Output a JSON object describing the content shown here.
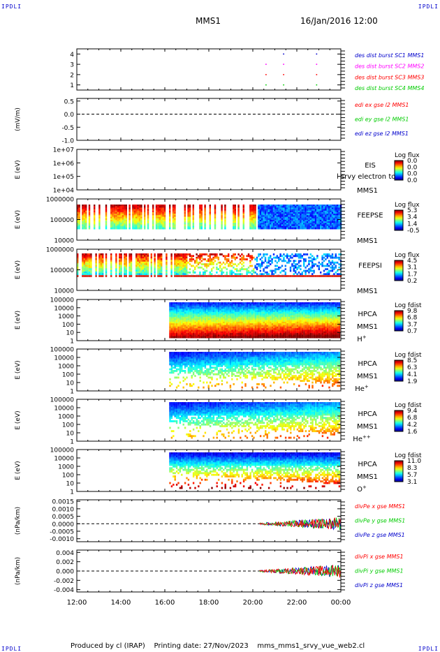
{
  "corner_tag": "IPDLI",
  "header": {
    "spacecraft": "MMS1",
    "datetime": "16/Jan/2016 12:00"
  },
  "footer": {
    "produced_by": "Produced by cl (IRAP)",
    "printing_date": "Printing date: 27/Nov/2023",
    "filename": "mms_mms1_srvy_vue_web2.cl"
  },
  "colors": {
    "red": "#ff0000",
    "green": "#00cc00",
    "blue": "#0000cc",
    "magenta": "#ff00ff"
  },
  "chart_data": [
    {
      "type": "scatter",
      "panel": "dist-burst",
      "yticks": [
        "1",
        "2",
        "3",
        "4"
      ],
      "ylim": [
        0.5,
        4.5
      ],
      "legend": [
        {
          "label": "des dist burst SC1 MMS1",
          "color": "#0000cc"
        },
        {
          "label": "des dist burst SC2 MMS2",
          "color": "#ff00ff"
        },
        {
          "label": "des dist burst SC3 MMS3",
          "color": "#ff0000"
        },
        {
          "label": "des dist burst SC4 MMS4",
          "color": "#00cc00"
        }
      ],
      "points": [
        {
          "x": 20.6,
          "y": 1
        },
        {
          "x": 21.4,
          "y": 1
        },
        {
          "x": 22.9,
          "y": 1
        },
        {
          "x": 20.6,
          "y": 2
        },
        {
          "x": 21.4,
          "y": 2
        },
        {
          "x": 22.9,
          "y": 2
        },
        {
          "x": 20.6,
          "y": 3
        },
        {
          "x": 21.4,
          "y": 3
        },
        {
          "x": 22.9,
          "y": 3
        },
        {
          "x": 21.4,
          "y": 4
        },
        {
          "x": 22.9,
          "y": 4
        }
      ]
    },
    {
      "type": "line",
      "panel": "edi",
      "ylabel": "(mV/m)",
      "yticks": [
        "0.5",
        "0.0",
        "-0.5",
        "-1.0"
      ],
      "ylim": [
        -1.0,
        0.6
      ],
      "legend": [
        {
          "label": "edi ex gse l2 MMS1",
          "color": "#ff0000"
        },
        {
          "label": "edi ey gse l2 MMS1",
          "color": "#00cc00"
        },
        {
          "label": "edi ez gse l2 MMS1",
          "color": "#0000cc"
        }
      ]
    },
    {
      "type": "heatmap",
      "panel": "eis",
      "ylabel": "E (eV)",
      "yticks": [
        "1e+07",
        "1e+06",
        "1e+05",
        "1e+04"
      ],
      "ylim": [
        10000,
        10000000
      ],
      "log_scale": true,
      "instrument": [
        "EIS",
        "MMS1"
      ],
      "overlay_text": "l srvy electron to",
      "colorbar_title": "Log flux",
      "colorbar_ticks": [
        "0.0",
        "0.0",
        "0.0",
        "0.0"
      ]
    },
    {
      "type": "heatmap",
      "panel": "feeps-e",
      "ylabel": "E (eV)",
      "yticks": [
        "1000000",
        "100000",
        "10000"
      ],
      "ylim": [
        10000,
        1000000
      ],
      "log_scale": true,
      "instrument": [
        "FEEPSE",
        "MMS1"
      ],
      "colorbar_title": "Log flux",
      "colorbar_ticks": [
        "5.3",
        "3.4",
        "1.4",
        "-0.5"
      ],
      "data_start_hour": 12.0
    },
    {
      "type": "heatmap",
      "panel": "feeps-i",
      "ylabel": "E (eV)",
      "yticks": [
        "1000000",
        "100000",
        "10000"
      ],
      "ylim": [
        10000,
        1000000
      ],
      "log_scale": true,
      "instrument": [
        "FEEPSI",
        "MMS1"
      ],
      "colorbar_title": "Log flux",
      "colorbar_ticks": [
        "4.5",
        "3.1",
        "1.7",
        "0.2"
      ],
      "data_start_hour": 12.0
    },
    {
      "type": "heatmap",
      "panel": "hpca-h",
      "ylabel": "E (eV)",
      "yticks": [
        "100000",
        "10000",
        "1000",
        "100",
        "10",
        "1"
      ],
      "ylim": [
        1,
        100000
      ],
      "log_scale": true,
      "instrument": [
        "HPCA",
        "MMS1",
        "H+"
      ],
      "colorbar_title": "Log fdist",
      "colorbar_ticks": [
        "9.8",
        "6.8",
        "3.7",
        "0.7"
      ],
      "data_start_hour": 16.2
    },
    {
      "type": "heatmap",
      "panel": "hpca-he",
      "ylabel": "E (eV)",
      "yticks": [
        "100000",
        "10000",
        "1000",
        "100",
        "10",
        "1"
      ],
      "ylim": [
        1,
        100000
      ],
      "log_scale": true,
      "instrument": [
        "HPCA",
        "MMS1",
        "He+"
      ],
      "colorbar_title": "Log fdist",
      "colorbar_ticks": [
        "8.5",
        "6.3",
        "4.1",
        "1.9"
      ],
      "data_start_hour": 16.2
    },
    {
      "type": "heatmap",
      "panel": "hpca-he2",
      "ylabel": "E (eV)",
      "yticks": [
        "100000",
        "10000",
        "1000",
        "100",
        "10",
        "1"
      ],
      "ylim": [
        1,
        100000
      ],
      "log_scale": true,
      "instrument": [
        "HPCA",
        "MMS1",
        "He++"
      ],
      "colorbar_title": "Log fdist",
      "colorbar_ticks": [
        "9.4",
        "6.8",
        "4.2",
        "1.6"
      ],
      "data_start_hour": 16.2
    },
    {
      "type": "heatmap",
      "panel": "hpca-o",
      "ylabel": "E (eV)",
      "yticks": [
        "100000",
        "10000",
        "1000",
        "100",
        "10",
        "1"
      ],
      "ylim": [
        1,
        100000
      ],
      "log_scale": true,
      "instrument": [
        "HPCA",
        "MMS1",
        "O+"
      ],
      "colorbar_title": "Log fdist",
      "colorbar_ticks": [
        "11.0",
        "8.3",
        "5.7",
        "3.1"
      ],
      "data_start_hour": 16.2
    },
    {
      "type": "line",
      "panel": "divpe",
      "ylabel": "(nPa/km)",
      "yticks": [
        "0.0015",
        "0.0010",
        "0.0005",
        "0.0000",
        "-0.0005",
        "-0.0010"
      ],
      "ylim": [
        -0.0012,
        0.0016
      ],
      "legend": [
        {
          "label": "divPe x gse MMS1",
          "color": "#ff0000"
        },
        {
          "label": "divPe y gse MMS1",
          "color": "#00cc00"
        },
        {
          "label": "divPe z gse MMS1",
          "color": "#0000cc"
        }
      ],
      "data_start_hour": 20.3
    },
    {
      "type": "line",
      "panel": "divpi",
      "ylabel": "(nPa/km)",
      "yticks": [
        "0.004",
        "0.002",
        "0.000",
        "-0.002",
        "-0.004"
      ],
      "ylim": [
        -0.0045,
        0.0045
      ],
      "legend": [
        {
          "label": "divPi x gse MMS1",
          "color": "#ff0000"
        },
        {
          "label": "divPi y gse MMS1",
          "color": "#00cc00"
        },
        {
          "label": "divPi z gse MMS1",
          "color": "#0000cc"
        }
      ],
      "data_start_hour": 20.3
    }
  ],
  "x_axis": {
    "range_hours": [
      12,
      24
    ],
    "ticks": [
      "12:00",
      "14:00",
      "16:00",
      "18:00",
      "20:00",
      "22:00",
      "00:00"
    ]
  }
}
